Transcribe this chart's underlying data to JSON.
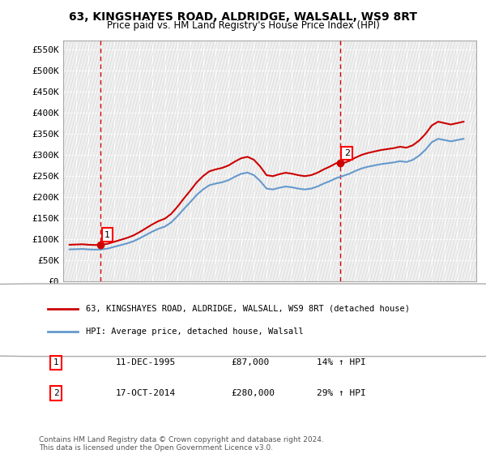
{
  "title_line1": "63, KINGSHAYES ROAD, ALDRIDGE, WALSALL, WS9 8RT",
  "title_line2": "Price paid vs. HM Land Registry's House Price Index (HPI)",
  "ylim": [
    0,
    570000
  ],
  "yticks": [
    0,
    50000,
    100000,
    150000,
    200000,
    250000,
    300000,
    350000,
    400000,
    450000,
    500000,
    550000
  ],
  "ytick_labels": [
    "£0",
    "£50K",
    "£100K",
    "£150K",
    "£200K",
    "£250K",
    "£300K",
    "£350K",
    "£400K",
    "£450K",
    "£500K",
    "£550K"
  ],
  "sale1_date": 1995.94,
  "sale1_price": 87000,
  "sale2_date": 2014.79,
  "sale2_price": 280000,
  "hpi_color": "#6699cc",
  "price_color": "#cc0000",
  "vline_color": "#cc0000",
  "legend_label1": "63, KINGSHAYES ROAD, ALDRIDGE, WALSALL, WS9 8RT (detached house)",
  "legend_label2": "HPI: Average price, detached house, Walsall",
  "table_row1": [
    "1",
    "11-DEC-1995",
    "£87,000",
    "14% ↑ HPI"
  ],
  "table_row2": [
    "2",
    "17-OCT-2014",
    "£280,000",
    "29% ↑ HPI"
  ],
  "footnote": "Contains HM Land Registry data © Crown copyright and database right 2024.\nThis data is licensed under the Open Government Licence v3.0.",
  "background_color": "#ffffff",
  "plot_bg_color": "#f0f0f0",
  "grid_color": "#ffffff"
}
